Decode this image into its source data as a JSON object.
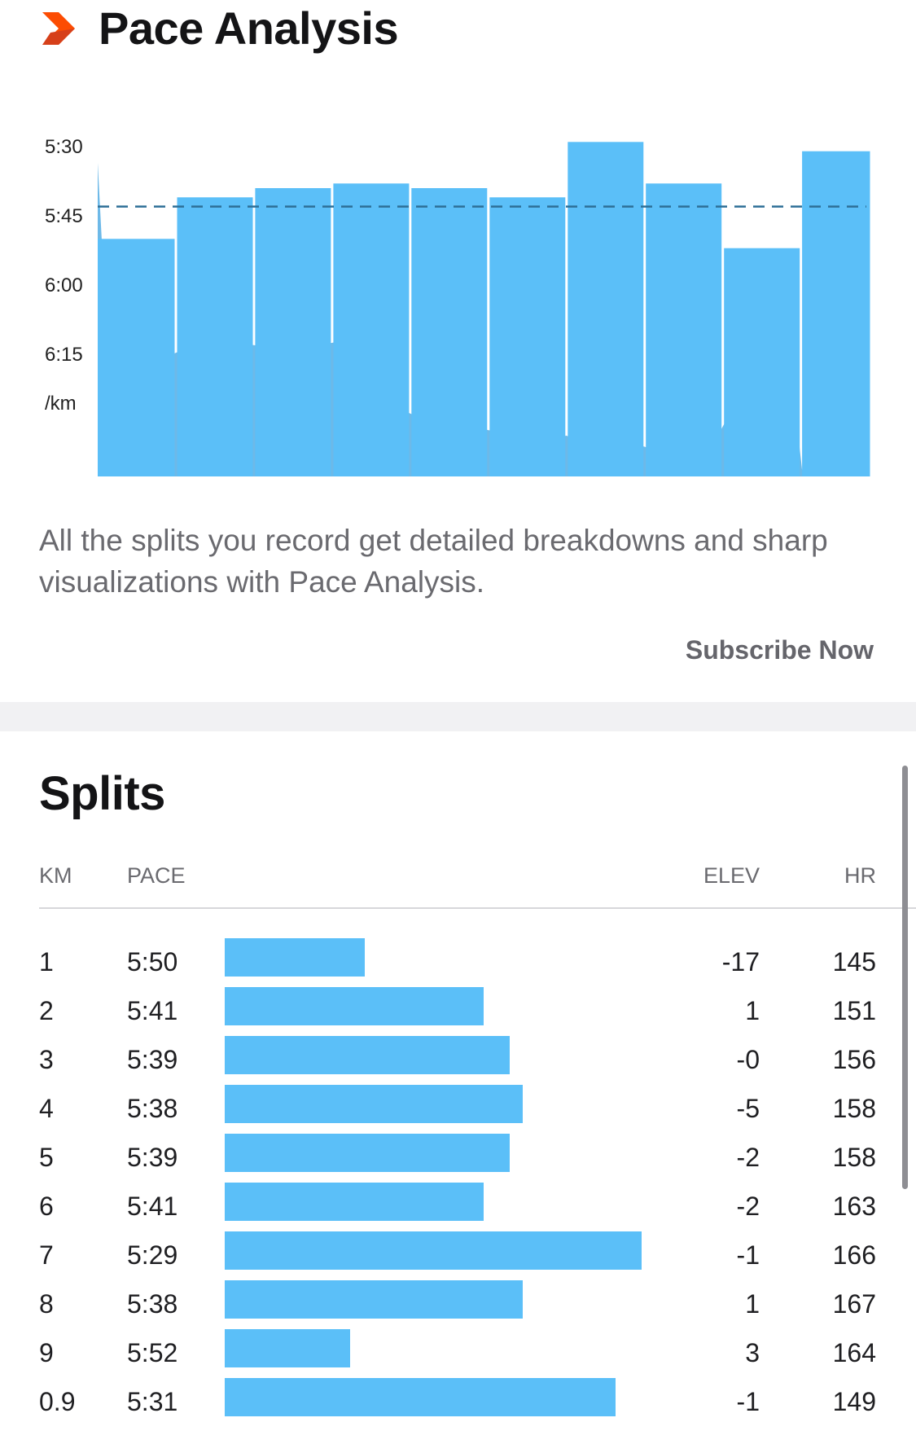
{
  "pace_analysis": {
    "title": "Pace Analysis",
    "icon": "chevron-right-icon",
    "description": "All the splits you record get detailed breakdowns and sharp visualizations with Pace Analysis.",
    "subscribe_label": "Subscribe Now"
  },
  "chart_data": {
    "type": "bar",
    "title": "",
    "xlabel": "",
    "ylabel": "/km",
    "y_unit": "/km",
    "y_axis": "pace (min:sec per km), faster pace plotted higher",
    "y_ticks": [
      "5:30",
      "5:45",
      "6:00",
      "6:15",
      "/km"
    ],
    "ylim": [
      "6:30",
      "5:20"
    ],
    "categories": [
      "1",
      "2",
      "3",
      "4",
      "5",
      "6",
      "7",
      "8",
      "9",
      "0.9"
    ],
    "values": [
      "5:50",
      "5:41",
      "5:39",
      "5:38",
      "5:39",
      "5:41",
      "5:29",
      "5:38",
      "5:52",
      "5:31"
    ],
    "values_seconds": [
      350,
      341,
      339,
      338,
      339,
      341,
      329,
      338,
      352,
      331
    ],
    "bar_widths_km": [
      1,
      1,
      1,
      1,
      1,
      1,
      1,
      1,
      1,
      0.9
    ],
    "average_line": "5:43",
    "average_line_seconds": 343,
    "grid": false,
    "colors": {
      "bar": "#5bbff8",
      "background_profile": "#54ade4",
      "average_line": "#2e6f97"
    }
  },
  "splits": {
    "title": "Splits",
    "columns": {
      "km": "KM",
      "pace": "PACE",
      "elev": "ELEV",
      "hr": "HR"
    },
    "rows": [
      {
        "km": "1",
        "pace": "5:50",
        "elev": "-17",
        "hr": "145",
        "pace_seconds": 350
      },
      {
        "km": "2",
        "pace": "5:41",
        "elev": "1",
        "hr": "151",
        "pace_seconds": 341
      },
      {
        "km": "3",
        "pace": "5:39",
        "elev": "-0",
        "hr": "156",
        "pace_seconds": 339
      },
      {
        "km": "4",
        "pace": "5:38",
        "elev": "-5",
        "hr": "158",
        "pace_seconds": 338
      },
      {
        "km": "5",
        "pace": "5:39",
        "elev": "-2",
        "hr": "158",
        "pace_seconds": 339
      },
      {
        "km": "6",
        "pace": "5:41",
        "elev": "-2",
        "hr": "163",
        "pace_seconds": 341
      },
      {
        "km": "7",
        "pace": "5:29",
        "elev": "-1",
        "hr": "166",
        "pace_seconds": 329
      },
      {
        "km": "8",
        "pace": "5:38",
        "elev": "1",
        "hr": "167",
        "pace_seconds": 338
      },
      {
        "km": "9",
        "pace": "5:52",
        "elev": "3",
        "hr": "164",
        "pace_seconds": 352
      },
      {
        "km": "0.9",
        "pace": "5:31",
        "elev": "-1",
        "hr": "149",
        "pace_seconds": 331
      }
    ]
  },
  "colors": {
    "accent_orange": "#fc4c02",
    "bar_blue": "#5bbff8",
    "muted_text": "#6a6a6f",
    "separator": "#f1f1f3"
  }
}
